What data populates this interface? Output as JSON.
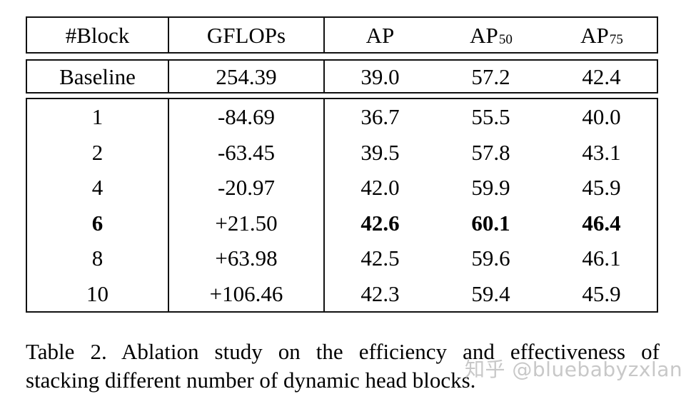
{
  "table": {
    "headers": {
      "block": "#Block",
      "gflops": "GFLOPs",
      "ap": "AP",
      "ap50_base": "AP",
      "ap50_sub": "50",
      "ap75_base": "AP",
      "ap75_sub": "75"
    },
    "baseline": {
      "block": "Baseline",
      "gflops": "254.39",
      "ap": "39.0",
      "ap50": "57.2",
      "ap75": "42.4"
    },
    "rows": [
      {
        "block": "1",
        "gflops": "-84.69",
        "ap": "36.7",
        "ap50": "55.5",
        "ap75": "40.0",
        "highlight": false
      },
      {
        "block": "2",
        "gflops": "-63.45",
        "ap": "39.5",
        "ap50": "57.8",
        "ap75": "43.1",
        "highlight": false
      },
      {
        "block": "4",
        "gflops": "-20.97",
        "ap": "42.0",
        "ap50": "59.9",
        "ap75": "45.9",
        "highlight": false
      },
      {
        "block": "6",
        "gflops": "+21.50",
        "ap": "42.6",
        "ap50": "60.1",
        "ap75": "46.4",
        "highlight": true
      },
      {
        "block": "8",
        "gflops": "+63.98",
        "ap": "42.5",
        "ap50": "59.6",
        "ap75": "46.1",
        "highlight": false
      },
      {
        "block": "10",
        "gflops": "+106.46",
        "ap": "42.3",
        "ap50": "59.4",
        "ap75": "45.9",
        "highlight": false
      }
    ]
  },
  "caption": {
    "line1": "Table 2. Ablation study on the efficiency and effectiveness of",
    "line2": "stacking different number of dynamic head blocks."
  },
  "watermark": {
    "text": "知乎 @bluebabyzxlan",
    "color": "#c8c8c8"
  }
}
